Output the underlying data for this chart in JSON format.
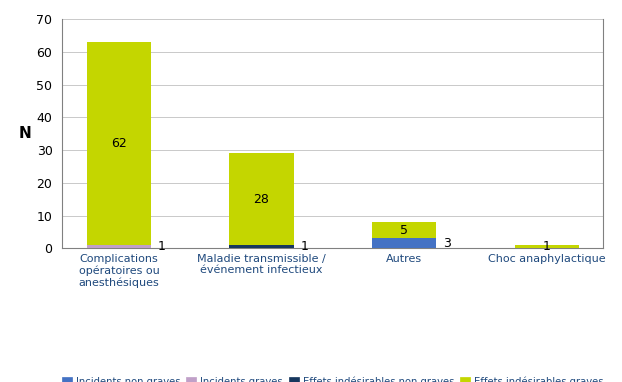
{
  "categories": [
    "Complications\nopératoires ou\nanesthésiques",
    "Maladie transmissible /\névénement infectieux",
    "Autres",
    "Choc anaphylactique"
  ],
  "series": {
    "Incidents non graves": [
      0,
      0,
      3,
      0
    ],
    "Incidents graves": [
      1,
      0,
      0,
      0
    ],
    "Effets indésirables non graves": [
      0,
      1,
      0,
      0
    ],
    "Effets indésirables graves": [
      62,
      28,
      5,
      1
    ]
  },
  "colors": {
    "Incidents non graves": "#4472C4",
    "Incidents graves": "#C0A0C8",
    "Effets indésirables non graves": "#17375E",
    "Effets indésirables graves": "#C4D600"
  },
  "series_order": [
    "Incidents non graves",
    "Incidents graves",
    "Effets indésirables non graves",
    "Effets indésirables graves"
  ],
  "ylabel": "N",
  "ylim": [
    0,
    70
  ],
  "yticks": [
    0,
    10,
    20,
    30,
    40,
    50,
    60,
    70
  ],
  "background_color": "#FFFFFF",
  "figsize": [
    6.22,
    3.82
  ],
  "dpi": 100,
  "bar_width": 0.45,
  "label_color": "#1F497D",
  "axis_color": "#808080"
}
